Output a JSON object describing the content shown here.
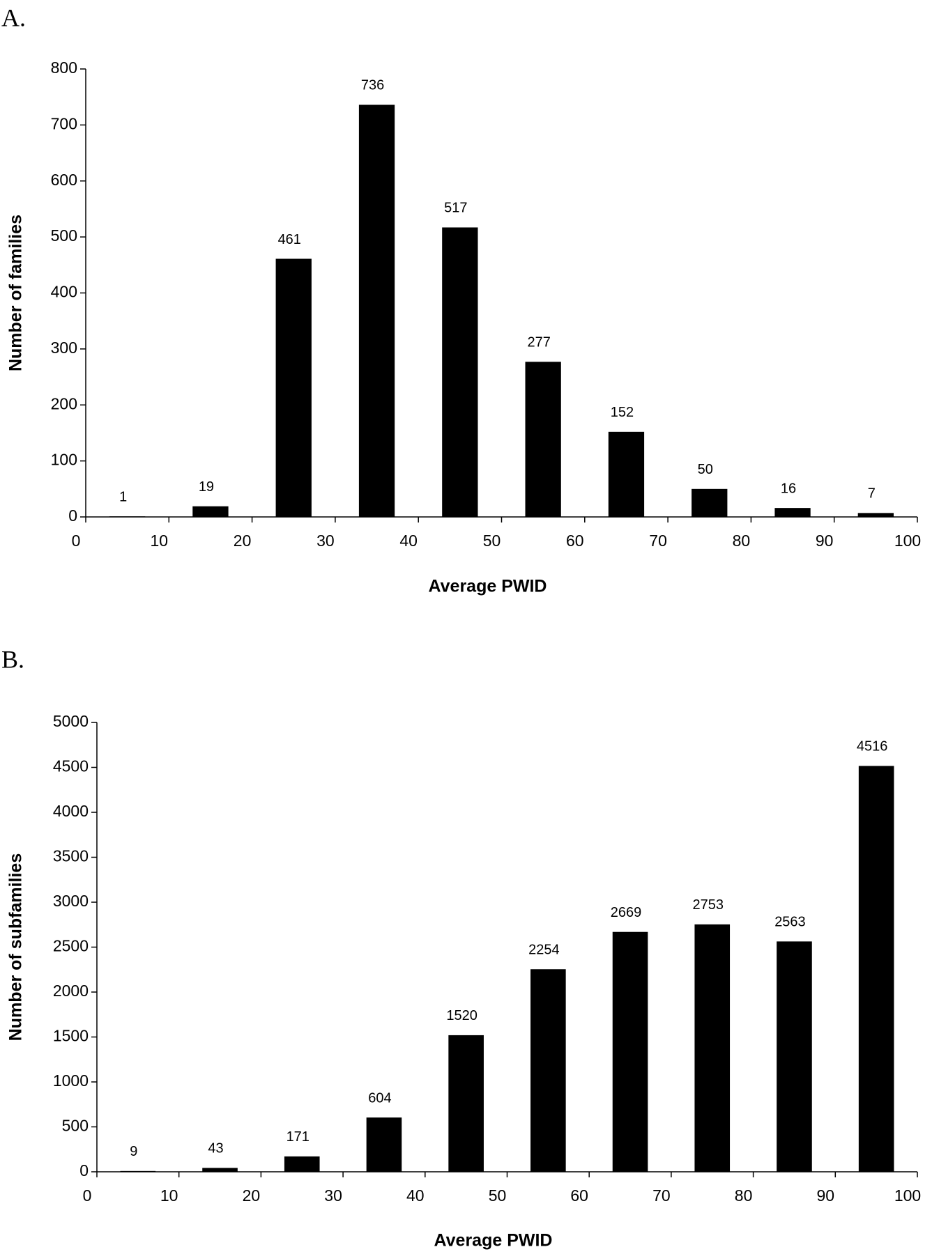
{
  "chart_data": [
    {
      "type": "bar",
      "panel": "A.",
      "xlabel": "Average PWID",
      "ylabel": "Number of families",
      "x": [
        5,
        15,
        25,
        35,
        45,
        55,
        65,
        75,
        85,
        95
      ],
      "values": [
        1,
        19,
        461,
        736,
        517,
        277,
        152,
        50,
        16,
        7
      ],
      "color": "#000000",
      "data_labels": true,
      "xlim": [
        0,
        100
      ],
      "xticks": [
        0,
        10,
        20,
        30,
        40,
        50,
        60,
        70,
        80,
        90,
        100
      ],
      "ylim": [
        0,
        800
      ],
      "yticks": [
        0,
        100,
        200,
        300,
        400,
        500,
        600,
        700,
        800
      ]
    },
    {
      "type": "bar",
      "panel": "B.",
      "xlabel": "Average PWID",
      "ylabel": "Number of subfamilies",
      "x": [
        5,
        15,
        25,
        35,
        45,
        55,
        65,
        75,
        85,
        95
      ],
      "values": [
        9,
        43,
        171,
        604,
        1520,
        2254,
        2669,
        2753,
        2563,
        4516
      ],
      "color": "#000000",
      "data_labels": true,
      "xlim": [
        0,
        100
      ],
      "xticks": [
        0,
        10,
        20,
        30,
        40,
        50,
        60,
        70,
        80,
        90,
        100
      ],
      "ylim": [
        0,
        5000
      ],
      "yticks": [
        0,
        500,
        1000,
        1500,
        2000,
        2500,
        3000,
        3500,
        4000,
        4500,
        5000
      ]
    }
  ]
}
